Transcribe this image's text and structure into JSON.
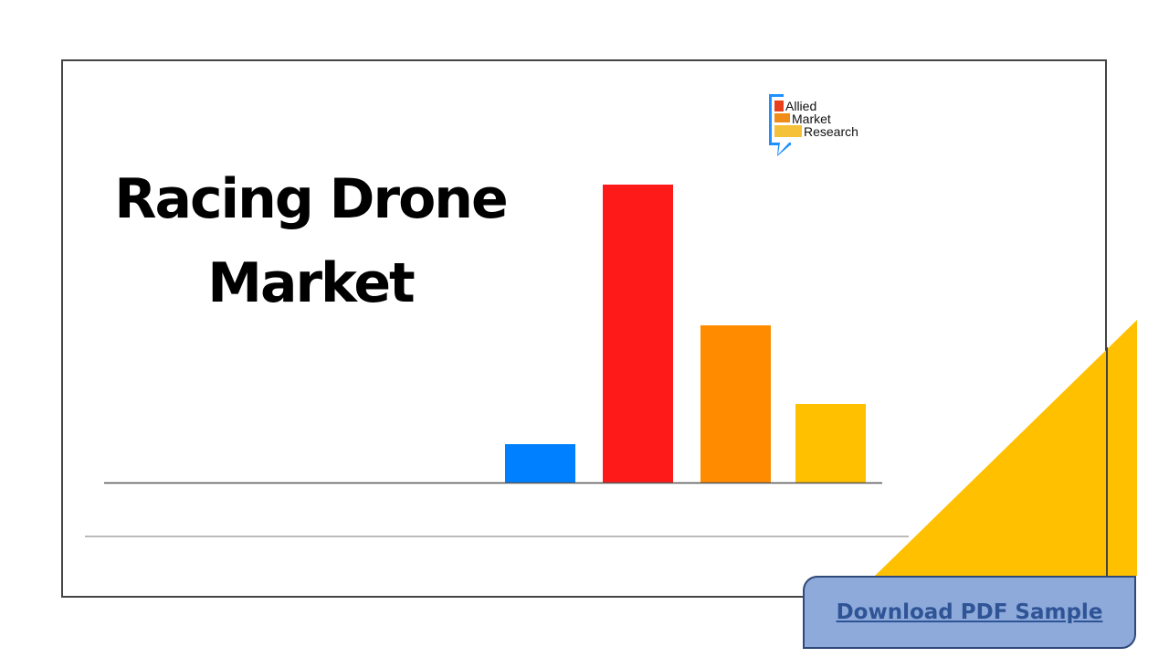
{
  "title_line1": "Racing Drone",
  "title_line2": "Market",
  "logo": {
    "line1": "Allied",
    "line2": "Market",
    "line3": "Research"
  },
  "download_button": "Download PDF Sample",
  "colors": {
    "blue": "#0080ff",
    "red": "#ff1a1a",
    "orange": "#ff8c00",
    "yellow": "#ffc000",
    "button": "#8eaadb",
    "accent_triangle": "#ffc000"
  },
  "chart_data": {
    "type": "bar",
    "title": "",
    "categories": [
      "",
      "",
      "",
      ""
    ],
    "values": [
      42,
      326,
      172,
      86
    ],
    "colors": [
      "#0080ff",
      "#ff1a1a",
      "#ff8c00",
      "#ffc000"
    ],
    "xlabel": "",
    "ylabel": "",
    "ylim": [
      0,
      326
    ]
  }
}
